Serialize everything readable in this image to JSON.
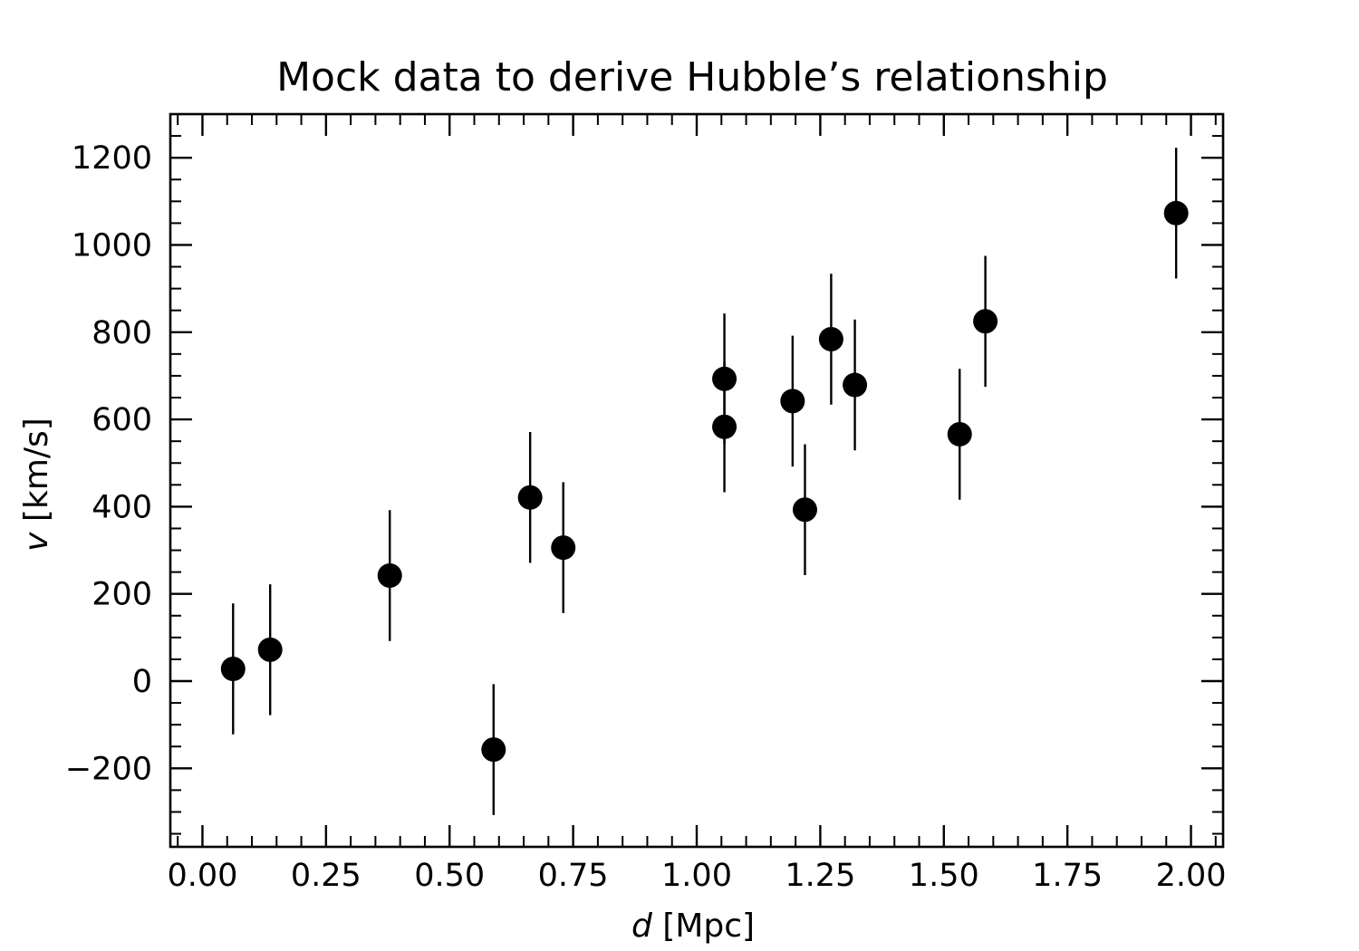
{
  "chart_data": {
    "type": "scatter",
    "title": "Mock data to derive Hubble’s relationship",
    "xlabel": {
      "var": "d",
      "unit": " [Mpc]"
    },
    "ylabel": {
      "var": "v",
      "unit": " [km/s]"
    },
    "xlim": [
      -0.065,
      2.065
    ],
    "ylim": [
      -380,
      1300
    ],
    "xticks": [
      0.0,
      0.25,
      0.5,
      0.75,
      1.0,
      1.25,
      1.5,
      1.75,
      2.0
    ],
    "xtick_labels": [
      "0.00",
      "0.25",
      "0.50",
      "0.75",
      "1.00",
      "1.25",
      "1.50",
      "1.75",
      "2.00"
    ],
    "yticks": [
      -200,
      0,
      200,
      400,
      600,
      800,
      1000,
      1200
    ],
    "ytick_labels": [
      "−200",
      "0",
      "200",
      "400",
      "600",
      "800",
      "1000",
      "1200"
    ],
    "grid": false,
    "marker_color": "#000000",
    "error": 150,
    "points": [
      {
        "x": 0.062,
        "y": 28
      },
      {
        "x": 0.137,
        "y": 72
      },
      {
        "x": 0.379,
        "y": 242
      },
      {
        "x": 0.589,
        "y": -157
      },
      {
        "x": 0.663,
        "y": 421
      },
      {
        "x": 0.73,
        "y": 306
      },
      {
        "x": 1.056,
        "y": 693
      },
      {
        "x": 1.056,
        "y": 583
      },
      {
        "x": 1.194,
        "y": 642
      },
      {
        "x": 1.219,
        "y": 393
      },
      {
        "x": 1.272,
        "y": 784
      },
      {
        "x": 1.32,
        "y": 679
      },
      {
        "x": 1.532,
        "y": 566
      },
      {
        "x": 1.584,
        "y": 825
      },
      {
        "x": 1.97,
        "y": 1073
      }
    ]
  }
}
